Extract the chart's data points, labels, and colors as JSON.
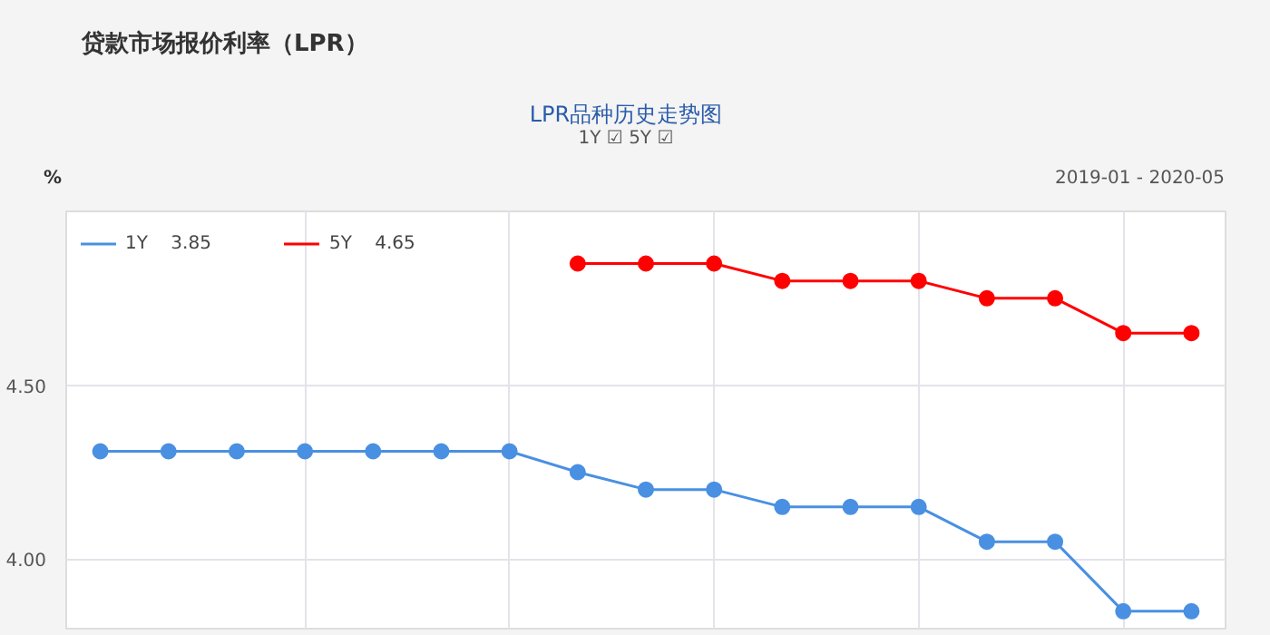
{
  "chart_data": {
    "type": "line",
    "title": "贷款市场报价利率（LPR）",
    "subtitle": "LPR品种历史走势图",
    "ylabel": "%",
    "annotations": [
      "1Y ☑ 5Y ☑",
      "2019-01 - 2020-05"
    ],
    "categories": [
      null,
      null,
      null,
      null,
      null,
      null,
      null,
      null,
      null,
      null,
      null,
      null,
      null,
      null,
      null,
      null,
      null
    ],
    "series": [
      {
        "name": "1Y    3.85",
        "color": "#4a90e2",
        "values": [
          4.31,
          4.31,
          4.31,
          4.31,
          4.31,
          4.31,
          4.31,
          4.25,
          4.2,
          4.2,
          4.15,
          4.15,
          4.15,
          4.05,
          4.05,
          3.85,
          3.85
        ]
      },
      {
        "name": "5Y    4.65",
        "color": "#ff0000",
        "values": [
          null,
          null,
          null,
          null,
          null,
          null,
          null,
          4.85,
          4.85,
          4.85,
          4.8,
          4.8,
          4.8,
          4.75,
          4.75,
          4.65,
          4.65
        ]
      }
    ],
    "ylim": [
      3.8,
      5.0
    ],
    "yticks": [
      {
        "value": 4.0,
        "label": "4.00"
      },
      {
        "value": 4.5,
        "label": "4.50"
      }
    ],
    "tick_labels": "y",
    "grid": true,
    "legend": "top left",
    "marker": "circle",
    "line_style": "solid"
  }
}
